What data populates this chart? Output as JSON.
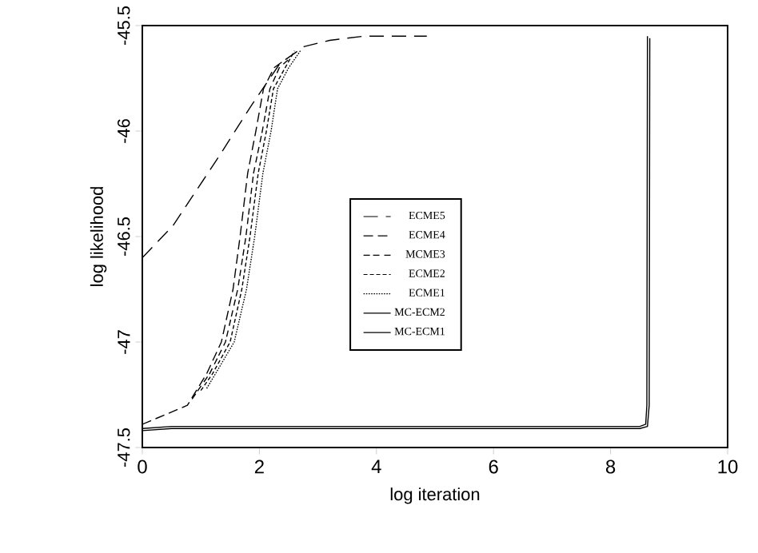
{
  "chart_data": {
    "type": "line",
    "xlabel": "log iteration",
    "ylabel": "log likelihood",
    "xlim": [
      0,
      10
    ],
    "ylim": [
      -47.5,
      -45.5
    ],
    "xticks": [
      0,
      2,
      4,
      6,
      8,
      10
    ],
    "yticks": [
      -47.5,
      -47,
      -46.5,
      -46,
      -45.5
    ],
    "legend": "center",
    "grid": false,
    "marker": "none",
    "series": [
      {
        "name": "ECME5",
        "color": "#000000",
        "line_style": "dashed",
        "x": [
          0,
          0.52,
          1.31,
          1.86,
          2.35,
          2.76,
          3.2,
          3.8,
          4.86
        ],
        "values": [
          -46.6,
          -46.45,
          -46.12,
          -45.88,
          -45.68,
          -45.6,
          -45.57,
          -45.55,
          -45.55
        ]
      },
      {
        "name": "ECME4",
        "color": "#000000",
        "line_style": "dashed",
        "x": [
          0,
          0.77,
          1.1,
          1.35,
          1.55,
          1.67,
          1.8,
          1.94,
          2.07,
          2.25,
          2.4
        ],
        "values": [
          -47.39,
          -47.3,
          -47.15,
          -47.0,
          -46.75,
          -46.5,
          -46.2,
          -46.0,
          -45.8,
          -45.7,
          -45.67
        ]
      },
      {
        "name": "MCME3",
        "color": "#000000",
        "line_style": "dashed",
        "x": [
          0.85,
          1.15,
          1.42,
          1.63,
          1.77,
          1.9,
          2.05,
          2.18,
          2.34,
          2.5
        ],
        "values": [
          -47.27,
          -47.15,
          -47.0,
          -46.75,
          -46.5,
          -46.2,
          -46.0,
          -45.8,
          -45.7,
          -45.66
        ]
      },
      {
        "name": "ECME2",
        "color": "#000000",
        "line_style": "dashed",
        "x": [
          1.0,
          1.2,
          1.5,
          1.7,
          1.84,
          1.98,
          2.12,
          2.24,
          2.44,
          2.6
        ],
        "values": [
          -47.23,
          -47.15,
          -47.0,
          -46.75,
          -46.5,
          -46.2,
          -46.0,
          -45.8,
          -45.7,
          -45.62
        ]
      },
      {
        "name": "ECME1",
        "color": "#000000",
        "line_style": "dotted",
        "x": [
          1.1,
          1.25,
          1.57,
          1.78,
          1.92,
          2.06,
          2.2,
          2.31,
          2.5,
          2.7
        ],
        "values": [
          -47.22,
          -47.15,
          -47.0,
          -46.75,
          -46.5,
          -46.2,
          -46.0,
          -45.8,
          -45.7,
          -45.62
        ]
      },
      {
        "name": "MC-ECM2",
        "color": "#000000",
        "line_style": "solid",
        "x": [
          0,
          0.5,
          8.5,
          8.6,
          8.62,
          8.63
        ],
        "values": [
          -47.41,
          -47.4,
          -47.4,
          -47.39,
          -47.3,
          -45.55
        ]
      },
      {
        "name": "MC-ECM1",
        "color": "#000000",
        "line_style": "solid",
        "x": [
          0,
          0.5,
          8.5,
          8.63,
          8.66,
          8.67
        ],
        "values": [
          -47.42,
          -47.41,
          -47.41,
          -47.4,
          -47.3,
          -45.56
        ]
      }
    ]
  }
}
